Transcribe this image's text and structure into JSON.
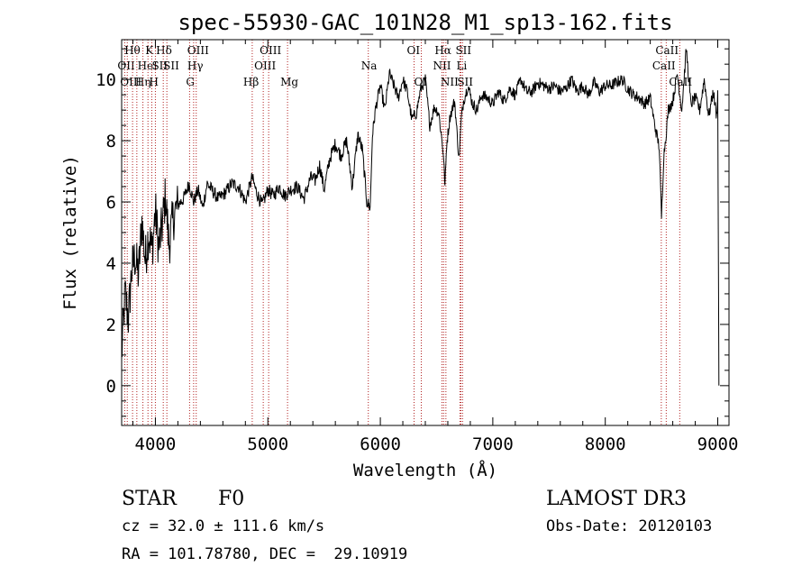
{
  "chart_data": {
    "type": "line",
    "title": "spec-55930-GAC_101N28_M1_sp13-162.fits",
    "xlabel": "Wavelength (Å)",
    "ylabel": "Flux (relative)",
    "xlim": [
      3700,
      9100
    ],
    "ylim": [
      -1.3,
      11.3
    ],
    "xticks": [
      4000,
      5000,
      6000,
      7000,
      8000,
      9000
    ],
    "yticks": [
      0,
      2,
      4,
      6,
      8,
      10
    ],
    "grid": false,
    "series": [
      {
        "color": "#000000",
        "x": [
          3700,
          3730,
          3760,
          3790,
          3820,
          3850,
          3880,
          3910,
          3940,
          3970,
          4000,
          4030,
          4060,
          4090,
          4120,
          4160,
          4200,
          4250,
          4300,
          4340,
          4380,
          4420,
          4460,
          4500,
          4560,
          4620,
          4680,
          4740,
          4800,
          4860,
          4900,
          4950,
          5000,
          5050,
          5100,
          5150,
          5200,
          5260,
          5320,
          5380,
          5420,
          5460,
          5500,
          5550,
          5600,
          5650,
          5700,
          5750,
          5800,
          5840,
          5880,
          5910,
          5930,
          5960,
          6000,
          6040,
          6080,
          6120,
          6160,
          6200,
          6240,
          6280,
          6320,
          6360,
          6400,
          6440,
          6480,
          6520,
          6560,
          6575,
          6590,
          6620,
          6660,
          6700,
          6720,
          6740,
          6780,
          6820,
          6860,
          6900,
          6950,
          7000,
          7050,
          7100,
          7150,
          7200,
          7250,
          7300,
          7350,
          7400,
          7450,
          7500,
          7550,
          7600,
          7650,
          7700,
          7750,
          7800,
          7850,
          7900,
          7950,
          8000,
          8050,
          8100,
          8150,
          8200,
          8250,
          8300,
          8350,
          8400,
          8440,
          8480,
          8500,
          8520,
          8540,
          8560,
          8600,
          8640,
          8680,
          8720,
          8760,
          8800,
          8840,
          8880,
          8920,
          8960,
          8990,
          9000,
          9010
        ],
        "values": [
          1.0,
          3.0,
          2.2,
          3.8,
          4.2,
          3.6,
          5.4,
          4.1,
          5.0,
          4.4,
          5.7,
          4.5,
          5.2,
          6.2,
          4.6,
          5.5,
          5.9,
          6.1,
          6.6,
          6.0,
          6.4,
          5.8,
          6.6,
          6.4,
          6.1,
          6.3,
          6.6,
          6.5,
          6.0,
          6.8,
          6.3,
          5.9,
          6.4,
          6.2,
          6.5,
          6.2,
          6.4,
          6.5,
          6.1,
          6.8,
          6.7,
          7.2,
          6.4,
          7.4,
          7.9,
          7.5,
          8.0,
          6.5,
          8.2,
          7.7,
          6.0,
          5.8,
          8.2,
          9.1,
          9.8,
          9.0,
          10.2,
          9.8,
          9.4,
          10.0,
          9.6,
          8.7,
          8.9,
          9.7,
          10.0,
          8.5,
          9.1,
          8.9,
          7.6,
          6.5,
          7.9,
          8.8,
          9.3,
          7.4,
          8.7,
          9.3,
          9.8,
          9.2,
          9.0,
          9.5,
          9.4,
          9.2,
          9.6,
          9.3,
          9.7,
          9.5,
          10.0,
          9.6,
          9.6,
          9.9,
          9.8,
          9.7,
          9.8,
          9.6,
          9.7,
          10.0,
          9.6,
          9.8,
          9.5,
          9.9,
          9.6,
          9.8,
          9.8,
          9.9,
          10.0,
          9.7,
          9.5,
          9.4,
          9.2,
          9.4,
          8.5,
          7.8,
          5.5,
          7.5,
          8.2,
          9.0,
          9.3,
          10.2,
          9.0,
          11.0,
          9.2,
          9.4,
          9.0,
          10.0,
          8.8,
          9.6,
          8.8,
          9.6,
          0.0
        ]
      }
    ],
    "line_markers": [
      {
        "wavelength": 3727,
        "label": "OII",
        "row": 1,
        "dx": -8
      },
      {
        "wavelength": 3750,
        "label": "OIII",
        "row": 2,
        "dx": -8
      },
      {
        "wavelength": 3797,
        "label": "Hθ",
        "row": 0,
        "dx": -9
      },
      {
        "wavelength": 3835,
        "label": "Hη",
        "row": 2,
        "dx": -2
      },
      {
        "wavelength": 3889,
        "label": "HeI",
        "row": 1,
        "dx": -6
      },
      {
        "wavelength": 3934,
        "label": "K",
        "row": 0,
        "dx": -3
      },
      {
        "wavelength": 3968,
        "label": "H",
        "row": 2,
        "dx": -3
      },
      {
        "wavelength": 4000,
        "label": "SII",
        "row": 1,
        "dx": -4
      },
      {
        "wavelength": 4102,
        "label": "Hδ",
        "row": 0,
        "dx": -12
      },
      {
        "wavelength": 4070,
        "label": "SII",
        "row": 1,
        "dx": 0
      },
      {
        "wavelength": 4304,
        "label": "G",
        "row": 2,
        "dx": -4
      },
      {
        "wavelength": 4340,
        "label": "Hγ",
        "row": 1,
        "dx": -7
      },
      {
        "wavelength": 4363,
        "label": "OIII",
        "row": 0,
        "dx": -10
      },
      {
        "wavelength": 4861,
        "label": "Hβ",
        "row": 2,
        "dx": -10
      },
      {
        "wavelength": 4959,
        "label": "OIII",
        "row": 1,
        "dx": -10
      },
      {
        "wavelength": 5007,
        "label": "OIII",
        "row": 0,
        "dx": -10
      },
      {
        "wavelength": 5175,
        "label": "Mg",
        "row": 2,
        "dx": -8
      },
      {
        "wavelength": 5893,
        "label": "Na",
        "row": 1,
        "dx": -8
      },
      {
        "wavelength": 6300,
        "label": "OI",
        "row": 0,
        "dx": -8
      },
      {
        "wavelength": 6364,
        "label": "OI",
        "row": 2,
        "dx": -8
      },
      {
        "wavelength": 6548,
        "label": "NII",
        "row": 1,
        "dx": -10
      },
      {
        "wavelength": 6563,
        "label": "Hα",
        "row": 0,
        "dx": -10
      },
      {
        "wavelength": 6583,
        "label": "NII",
        "row": 2,
        "dx": -6
      },
      {
        "wavelength": 6708,
        "label": "Li",
        "row": 1,
        "dx": -4
      },
      {
        "wavelength": 6716,
        "label": "SII",
        "row": 0,
        "dx": -6
      },
      {
        "wavelength": 6731,
        "label": "SII",
        "row": 2,
        "dx": -6
      },
      {
        "wavelength": 8498,
        "label": "CaII",
        "row": 1,
        "dx": -10
      },
      {
        "wavelength": 8542,
        "label": "CaII",
        "row": 0,
        "dx": -12
      },
      {
        "wavelength": 8662,
        "label": "CaII",
        "row": 2,
        "dx": -12
      }
    ]
  },
  "info": {
    "object_class": "STAR",
    "subclass": "F0",
    "survey": "LAMOST DR3",
    "cz": "cz = 32.0 ± 111.6 km/s",
    "obs_date": "Obs-Date: 20120103",
    "coords": "RA = 101.78780, DEC =  29.10919"
  }
}
